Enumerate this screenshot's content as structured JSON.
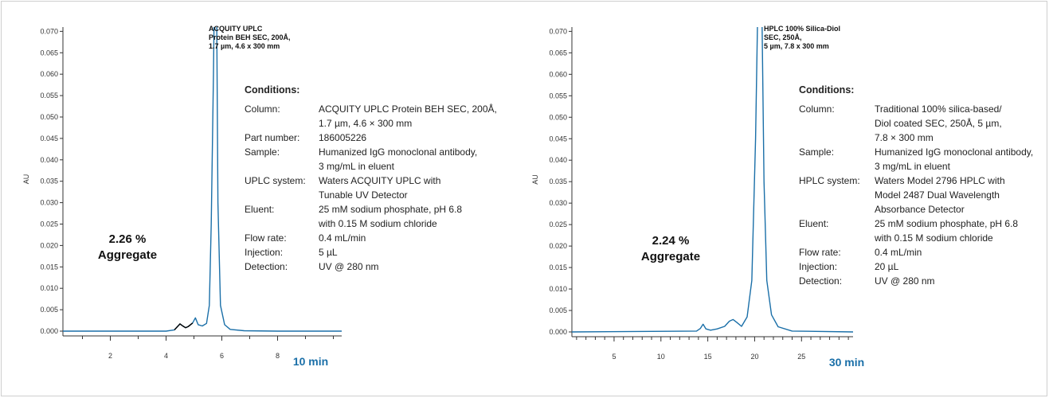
{
  "chart_data": [
    {
      "type": "line",
      "title": "",
      "column_label": [
        "ACQUITY UPLC",
        "Protein BEH SEC, 200Å,",
        "1.7 µm, 4.6 x 300 mm"
      ],
      "ylabel": "AU",
      "xlabel": "",
      "x_unit_label": "10 min",
      "ylim": [
        0.0,
        0.071
      ],
      "xlim": [
        0.3,
        10.3
      ],
      "y_ticks": [
        "0.000",
        "0.005",
        "0.010",
        "0.015",
        "0.020",
        "0.025",
        "0.030",
        "0.035",
        "0.040",
        "0.045",
        "0.050",
        "0.055",
        "0.060",
        "0.065",
        "0.070"
      ],
      "x_ticks": [
        "2",
        "4",
        "6",
        "8"
      ],
      "x_tick_values": [
        2,
        4,
        6,
        8
      ],
      "annotation": [
        "2.26 %",
        "Aggregate"
      ],
      "series": [
        {
          "color": "#1a6fa8",
          "x": [
            0.3,
            4.0,
            4.3,
            4.5,
            4.6,
            4.7,
            4.8,
            4.95,
            5.05,
            5.15,
            5.3,
            5.45,
            5.55,
            5.62,
            5.7,
            5.75,
            5.78,
            5.82,
            5.86,
            5.95,
            6.1,
            6.3,
            6.8,
            8.0,
            10.3
          ],
          "values": [
            0.0,
            0.0,
            0.0003,
            0.0017,
            0.0012,
            0.0008,
            0.0011,
            0.0019,
            0.0031,
            0.0015,
            0.0012,
            0.0018,
            0.006,
            0.025,
            0.06,
            0.09,
            0.095,
            0.07,
            0.03,
            0.006,
            0.0015,
            0.0004,
            0.0001,
            0.0,
            0.0
          ]
        }
      ],
      "highlight": {
        "color": "#000000",
        "x_range": [
          4.3,
          4.95
        ]
      }
    },
    {
      "type": "line",
      "title": "",
      "column_label": [
        "HPLC 100% Silica-Diol",
        "SEC, 250Å,",
        "5 µm, 7.8 x 300 mm"
      ],
      "ylabel": "AU",
      "xlabel": "",
      "x_unit_label": "30 min",
      "ylim": [
        0.0,
        0.071
      ],
      "xlim": [
        0.5,
        30.5
      ],
      "y_ticks": [
        "0.000",
        "0.005",
        "0.010",
        "0.015",
        "0.020",
        "0.025",
        "0.030",
        "0.035",
        "0.040",
        "0.045",
        "0.050",
        "0.055",
        "0.060",
        "0.065",
        "0.070"
      ],
      "x_ticks": [
        "5",
        "10",
        "15",
        "20",
        "25"
      ],
      "x_tick_values": [
        5,
        10,
        15,
        20,
        25
      ],
      "annotation": [
        "2.24 %",
        "Aggregate"
      ],
      "series": [
        {
          "color": "#1a6fa8",
          "x": [
            0.5,
            13.8,
            14.2,
            14.5,
            14.8,
            15.3,
            16.0,
            16.8,
            17.3,
            17.7,
            18.1,
            18.6,
            19.2,
            19.7,
            20.1,
            20.4,
            20.6,
            20.8,
            21.0,
            21.3,
            21.8,
            22.5,
            24.0,
            30.5
          ],
          "values": [
            0.0,
            0.0002,
            0.0008,
            0.0018,
            0.0007,
            0.0004,
            0.0007,
            0.0013,
            0.0025,
            0.0029,
            0.0022,
            0.0013,
            0.0035,
            0.012,
            0.045,
            0.085,
            0.095,
            0.07,
            0.035,
            0.012,
            0.004,
            0.0012,
            0.0002,
            0.0
          ]
        }
      ]
    }
  ],
  "panels": [
    {
      "conditions_title": "Conditions:",
      "rows": [
        {
          "key": "Column:",
          "lines": [
            "ACQUITY UPLC Protein BEH SEC, 200Å,",
            "1.7 µm, 4.6 × 300 mm"
          ]
        },
        {
          "key": "Part number:",
          "lines": [
            "186005226"
          ]
        },
        {
          "key": "Sample:",
          "lines": [
            "Humanized IgG monoclonal antibody,",
            "3 mg/mL in eluent"
          ]
        },
        {
          "key": "UPLC system:",
          "lines": [
            "Waters ACQUITY UPLC with",
            "Tunable UV Detector"
          ]
        },
        {
          "key": "Eluent:",
          "lines": [
            "25 mM sodium phosphate, pH 6.8",
            "with 0.15 M sodium chloride"
          ]
        },
        {
          "key": "Flow rate:",
          "lines": [
            "0.4 mL/min"
          ]
        },
        {
          "key": "Injection:",
          "lines": [
            "5 µL"
          ]
        },
        {
          "key": "Detection:",
          "lines": [
            "UV @ 280 nm"
          ]
        }
      ]
    },
    {
      "conditions_title": "Conditions:",
      "rows": [
        {
          "key": "Column:",
          "lines": [
            "Traditional 100% silica-based/",
            "Diol coated SEC, 250Å, 5 µm,",
            "7.8 × 300 mm"
          ]
        },
        {
          "key": "Sample:",
          "lines": [
            "Humanized IgG monoclonal antibody,",
            "3 mg/mL in eluent"
          ]
        },
        {
          "key": "HPLC system:",
          "lines": [
            "Waters Model 2796 HPLC with",
            "Model 2487 Dual Wavelength",
            "Absorbance Detector"
          ]
        },
        {
          "key": "Eluent:",
          "lines": [
            "25 mM sodium phosphate, pH 6.8",
            "with 0.15 M sodium chloride"
          ]
        },
        {
          "key": "Flow rate:",
          "lines": [
            "0.4 mL/min"
          ]
        },
        {
          "key": "Injection:",
          "lines": [
            "20 µL"
          ]
        },
        {
          "key": "Detection:",
          "lines": [
            "UV @ 280 nm"
          ]
        }
      ]
    }
  ]
}
